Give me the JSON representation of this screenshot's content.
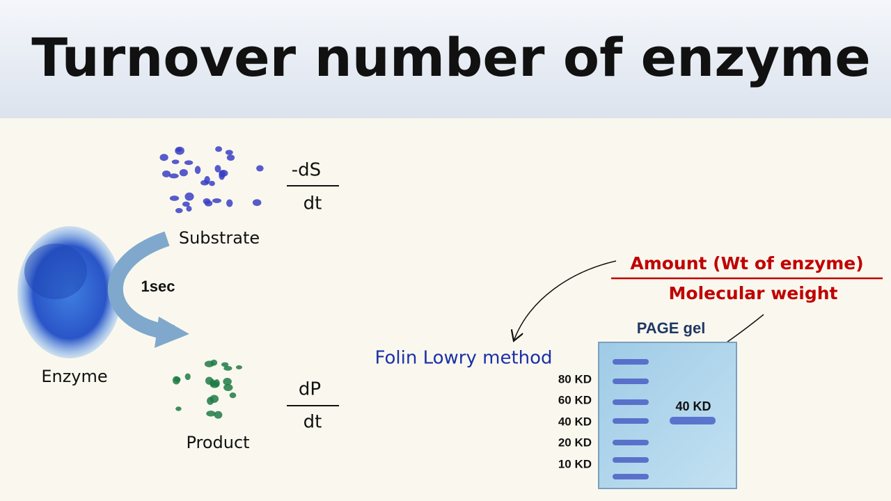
{
  "header": {
    "title": "Turnover number of enzyme"
  },
  "reaction": {
    "substrate": {
      "label": "Substrate",
      "rate": {
        "numerator": "-dS",
        "denominator": "dt"
      }
    },
    "time": "1sec",
    "enzyme": "Enzyme",
    "product": {
      "label": "Product",
      "rate": {
        "numerator": "dP",
        "denominator": "dt"
      }
    }
  },
  "moles": {
    "numerator": "Amount (Wt of enzyme)",
    "denominator": "Molecular weight"
  },
  "method": "Folin Lowry method",
  "gel": {
    "title": "PAGE gel",
    "ladder": [
      "80 KD",
      "60 KD",
      "40 KD",
      "20 KD",
      "10 KD"
    ],
    "sample_band": "40 KD"
  }
}
